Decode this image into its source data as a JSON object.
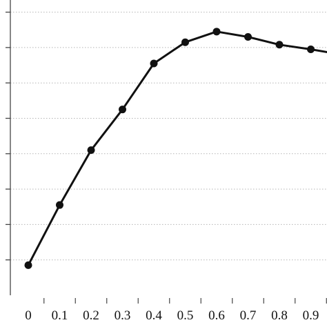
{
  "chart_data": {
    "type": "line",
    "x": [
      0,
      0.1,
      0.2,
      0.3,
      0.4,
      0.5,
      0.6,
      0.7,
      0.8,
      0.9,
      1.0
    ],
    "x_tick_labels": [
      "0",
      "0.1",
      "0.2",
      "0.3",
      "0.4",
      "0.5",
      "0.6",
      "0.7",
      "0.8",
      "0.9"
    ],
    "series": [
      {
        "values": [
          0.85,
          2.55,
          4.1,
          5.25,
          6.55,
          7.15,
          7.45,
          7.3,
          7.08,
          6.95,
          6.8
        ]
      }
    ],
    "ylim": [
      0,
      8.5
    ],
    "y_gridlines": [
      1,
      2,
      3,
      4,
      5,
      6,
      7,
      8
    ],
    "y_tick_labels_visible": false,
    "grid": "horizontal-dotted",
    "marker": "filled-circle",
    "colors": {
      "line": "#111111",
      "marker": "#111111",
      "grid": "#b4b4b4",
      "axis": "#444444"
    }
  }
}
